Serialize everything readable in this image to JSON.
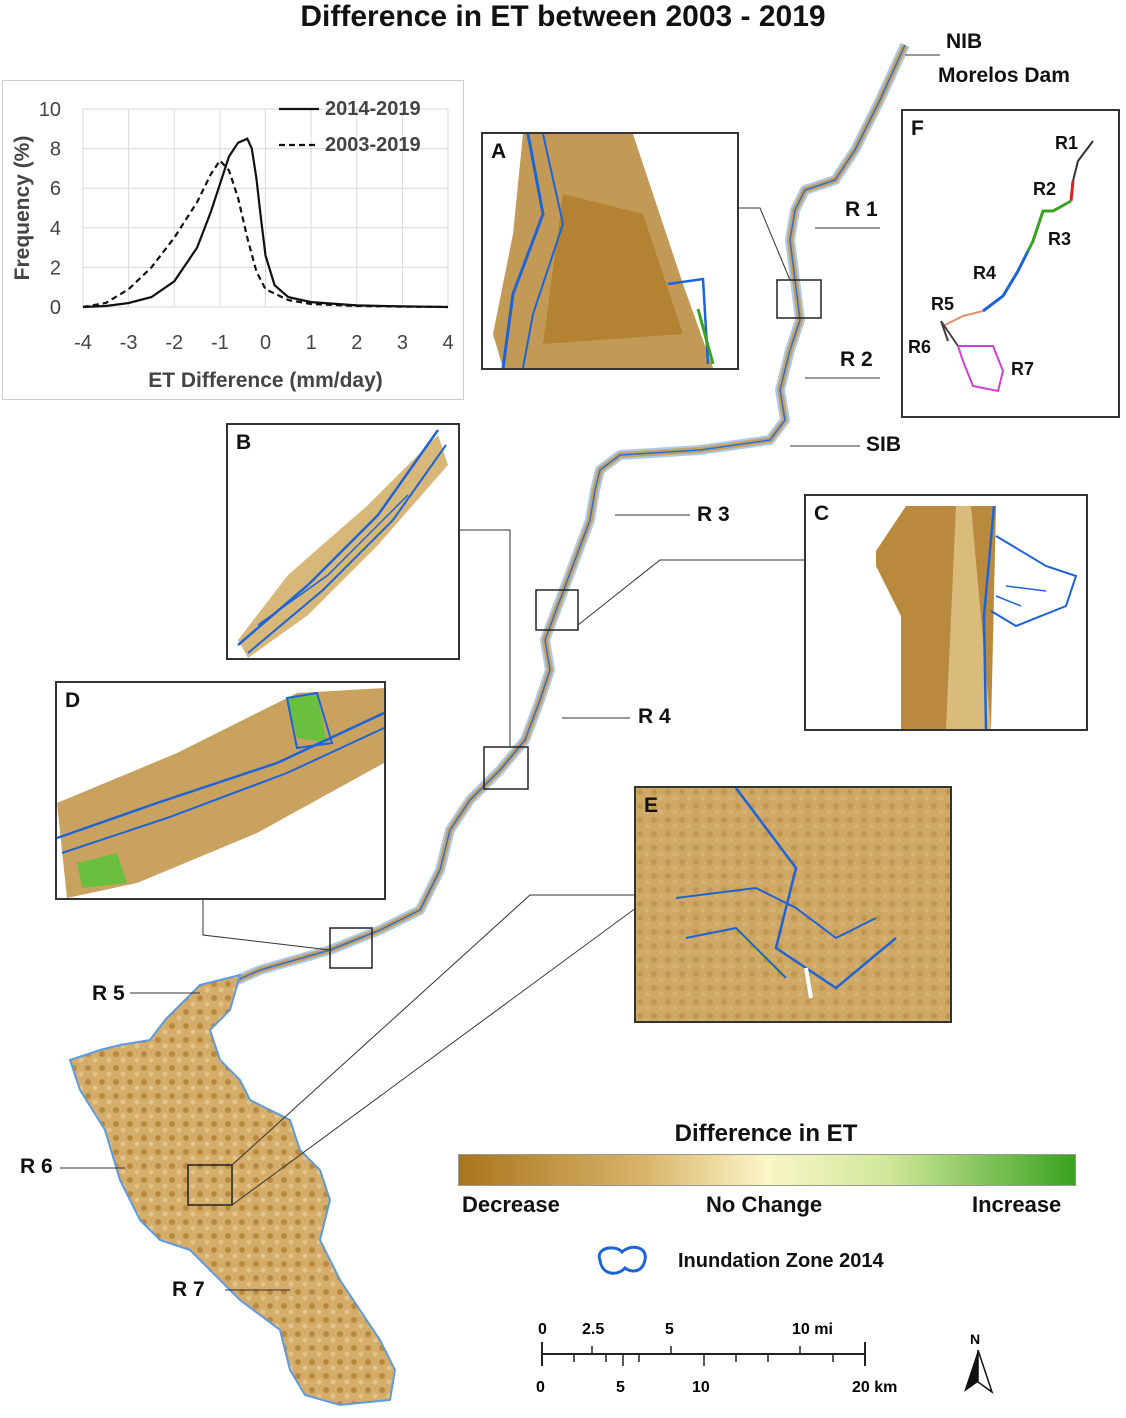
{
  "title": "Difference in ET  between 2003 - 2019",
  "chart_data": {
    "type": "line",
    "xlabel": "ET Difference (mm/day)",
    "ylabel": "Frequency (%)",
    "xlim": [
      -4,
      4
    ],
    "ylim": [
      0,
      10
    ],
    "x_ticks": [
      "-4",
      "-3",
      "-2",
      "-1",
      "0",
      "1",
      "2",
      "3",
      "4"
    ],
    "y_ticks": [
      "0",
      "2",
      "4",
      "6",
      "8",
      "10"
    ],
    "grid": true,
    "legend_position": "top-right",
    "series": [
      {
        "name": "2014-2019",
        "style": "solid",
        "x": [
          -4,
          -3.5,
          -3,
          -2.5,
          -2,
          -1.5,
          -1.2,
          -1,
          -0.8,
          -0.6,
          -0.4,
          -0.3,
          -0.2,
          -0.1,
          0,
          0.2,
          0.5,
          1,
          2,
          3,
          4
        ],
        "y": [
          0,
          0.05,
          0.2,
          0.5,
          1.3,
          3.0,
          4.8,
          6.2,
          7.6,
          8.3,
          8.5,
          8.0,
          6.5,
          4.5,
          2.6,
          1.1,
          0.5,
          0.25,
          0.08,
          0.03,
          0
        ]
      },
      {
        "name": "2003-2019",
        "style": "dashed",
        "x": [
          -4,
          -3.5,
          -3,
          -2.5,
          -2,
          -1.5,
          -1.2,
          -1,
          -0.8,
          -0.6,
          -0.4,
          -0.2,
          0,
          0.5,
          1,
          2,
          3,
          4
        ],
        "y": [
          0,
          0.2,
          0.9,
          2.0,
          3.5,
          5.3,
          6.7,
          7.4,
          6.9,
          5.5,
          3.5,
          1.8,
          0.9,
          0.35,
          0.15,
          0.05,
          0.02,
          0
        ]
      }
    ]
  },
  "insets": {
    "a": "A",
    "b": "B",
    "c": "C",
    "d": "D",
    "e": "E",
    "f": "F"
  },
  "reach_labels": {
    "r1": "R 1",
    "r2": "R 2",
    "r3": "R 3",
    "r4": "R 4",
    "r5": "R 5",
    "r6": "R 6",
    "r7": "R 7"
  },
  "place_labels": {
    "nib": "NIB",
    "morelos": "Morelos Dam",
    "sib": "SIB"
  },
  "overview_labels": {
    "r1": "R1",
    "r2": "R2",
    "r3": "R3",
    "r4": "R4",
    "r5": "R5",
    "r6": "R6",
    "r7": "R7"
  },
  "legend": {
    "title": "Difference in ET",
    "decrease": "Decrease",
    "no_change": "No Change",
    "increase": "Increase",
    "inundation": "Inundation Zone 2014",
    "colors": {
      "decrease": "#a8751c",
      "no_change": "#fbf6c8",
      "increase": "#3aa21f",
      "inundation": "#1e64d6"
    }
  },
  "scale_bar": {
    "mi_ticks": [
      "0",
      "2.5",
      "5",
      "10 mi"
    ],
    "km_ticks": [
      "0",
      "5",
      "10",
      "20 km"
    ]
  },
  "north": "N"
}
